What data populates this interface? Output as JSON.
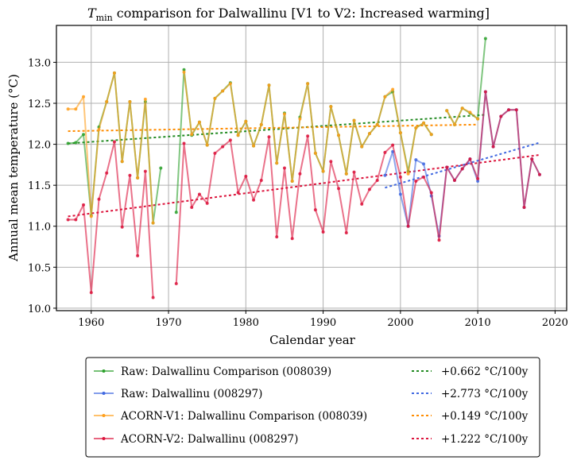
{
  "chart_data": {
    "type": "line",
    "title": {
      "prefix_italic": "T",
      "subscript": "min",
      "rest": " comparison for Dalwallinu   [V1 to V2: Increased warming]"
    },
    "xlabel": "Calendar year",
    "ylabel": "Annual mean temperature (°C)",
    "xlim": [
      1955.5,
      2021.5
    ],
    "ylim": [
      9.97,
      13.45
    ],
    "xticks": [
      1960,
      1970,
      1980,
      1990,
      2000,
      2010,
      2020
    ],
    "yticks": [
      10.0,
      10.5,
      11.0,
      11.5,
      12.0,
      12.5,
      13.0
    ],
    "ytick_labels": [
      "10.0",
      "10.5",
      "11.0",
      "11.5",
      "12.0",
      "12.5",
      "13.0"
    ],
    "grid": true,
    "legend_placement": "below-plot",
    "series": [
      {
        "name": "Raw: Dalwallinu Comparison (008039)",
        "color": "#2ca02c",
        "x": [
          1957,
          1958,
          1959,
          1960,
          1961,
          1962,
          1963,
          1964,
          1965,
          1966,
          1967,
          1968,
          1969,
          1970,
          1971,
          1972,
          1973,
          1974,
          1975,
          1976,
          1977,
          1978,
          1979,
          1980,
          1981,
          1982,
          1983,
          1984,
          1985,
          1986,
          1987,
          1988,
          1989,
          1990,
          1991,
          1992,
          1993,
          1994,
          1995,
          1996,
          1997,
          1998,
          1999,
          2000,
          2001,
          2002,
          2003,
          2004,
          2005,
          2006,
          2007,
          2008,
          2009,
          2010,
          2011
        ],
        "y": [
          12.01,
          12.02,
          12.12,
          11.13,
          12.21,
          12.52,
          12.87,
          11.79,
          12.52,
          11.59,
          12.52,
          11.04,
          11.71,
          null,
          11.17,
          12.91,
          12.11,
          12.27,
          11.99,
          12.56,
          12.65,
          12.75,
          12.11,
          12.28,
          11.98,
          12.24,
          12.72,
          11.77,
          12.38,
          11.55,
          12.33,
          12.74,
          11.89,
          11.67,
          12.46,
          12.11,
          11.64,
          12.29,
          11.97,
          12.13,
          12.24,
          12.58,
          12.64,
          12.14,
          11.67,
          12.2,
          12.26,
          12.12,
          null,
          12.41,
          12.24,
          12.44,
          12.38,
          12.31,
          13.29
        ]
      },
      {
        "name": "Raw: Dalwallinu (008297)",
        "color": "#4169e1",
        "x": [
          1998,
          1999,
          2000,
          2001,
          2002,
          2003,
          2004,
          2005,
          2006,
          2007,
          2008,
          2009,
          2010,
          2011,
          2012,
          2013,
          2014,
          2015,
          2016,
          2017,
          2018
        ],
        "y": [
          11.62,
          11.91,
          11.39,
          11.0,
          11.81,
          11.76,
          11.37,
          10.88,
          11.72,
          11.56,
          11.7,
          11.82,
          11.55,
          12.64,
          11.97,
          12.34,
          12.42,
          12.42,
          11.23,
          11.82,
          11.63
        ]
      },
      {
        "name": "ACORN-V1: Dalwallinu Comparison (008039)",
        "color": "#ff9f1c",
        "x": [
          1957,
          1958,
          1959,
          1960,
          1961,
          1962,
          1963,
          1964,
          1965,
          1966,
          1967,
          1968,
          1969,
          1970,
          1971,
          1972,
          1973,
          1974,
          1975,
          1976,
          1977,
          1978,
          1979,
          1980,
          1981,
          1982,
          1983,
          1984,
          1985,
          1986,
          1987,
          1988,
          1989,
          1990,
          1991,
          1992,
          1993,
          1994,
          1995,
          1996,
          1997,
          1998,
          1999,
          2000,
          2001,
          2002,
          2003,
          2004,
          2005,
          2006,
          2007,
          2008,
          2009,
          2010
        ],
        "y": [
          12.43,
          12.43,
          12.58,
          11.12,
          12.18,
          12.52,
          12.87,
          11.79,
          12.52,
          11.59,
          12.55,
          11.04,
          null,
          null,
          null,
          12.88,
          12.12,
          12.27,
          11.99,
          12.56,
          12.65,
          12.74,
          12.11,
          12.28,
          11.98,
          12.24,
          12.72,
          11.77,
          12.37,
          11.55,
          12.31,
          12.74,
          11.89,
          11.67,
          12.46,
          12.11,
          11.64,
          12.29,
          11.97,
          12.13,
          12.24,
          12.58,
          12.67,
          12.14,
          11.64,
          12.2,
          12.26,
          12.12,
          null,
          12.41,
          12.24,
          12.44,
          12.39,
          12.31
        ]
      },
      {
        "name": "ACORN-V2: Dalwallinu (008297)",
        "color": "#dc143c",
        "x": [
          1957,
          1958,
          1959,
          1960,
          1961,
          1962,
          1963,
          1964,
          1965,
          1966,
          1967,
          1968,
          1969,
          1970,
          1971,
          1972,
          1973,
          1974,
          1975,
          1976,
          1977,
          1978,
          1979,
          1980,
          1981,
          1982,
          1983,
          1984,
          1985,
          1986,
          1987,
          1988,
          1989,
          1990,
          1991,
          1992,
          1993,
          1994,
          1995,
          1996,
          1997,
          1998,
          1999,
          2000,
          2001,
          2002,
          2003,
          2004,
          2005,
          2006,
          2007,
          2008,
          2009,
          2010,
          2011,
          2012,
          2013,
          2014,
          2015,
          2016,
          2017,
          2018
        ],
        "y": [
          11.08,
          11.08,
          11.26,
          10.19,
          11.33,
          11.65,
          12.03,
          10.99,
          11.62,
          10.64,
          11.67,
          10.13,
          null,
          null,
          10.3,
          12.01,
          11.23,
          11.39,
          11.28,
          11.89,
          11.97,
          12.05,
          11.41,
          11.61,
          11.32,
          11.56,
          12.09,
          10.87,
          11.71,
          10.85,
          11.64,
          12.1,
          11.2,
          10.93,
          11.79,
          11.46,
          10.92,
          11.66,
          11.27,
          11.45,
          11.56,
          11.9,
          11.99,
          11.6,
          11.0,
          11.55,
          11.6,
          11.41,
          10.83,
          11.72,
          11.56,
          11.7,
          11.82,
          11.58,
          12.64,
          11.97,
          12.34,
          12.42,
          12.42,
          11.23,
          11.82,
          11.63
        ]
      }
    ],
    "trends": [
      {
        "label": "+0.662 °C/100y",
        "color": "#228b22",
        "x": [
          1957,
          2011
        ],
        "y": [
          12.01,
          12.36
        ]
      },
      {
        "label": "+2.773 °C/100y",
        "color": "#4169e1",
        "x": [
          1998,
          2018
        ],
        "y": [
          11.47,
          12.02
        ]
      },
      {
        "label": "+0.149 °C/100y",
        "color": "#ff8c00",
        "x": [
          1957,
          2010
        ],
        "y": [
          12.16,
          12.24
        ]
      },
      {
        "label": "+1.222 °C/100y",
        "color": "#dc143c",
        "x": [
          1957,
          2018
        ],
        "y": [
          11.12,
          11.87
        ]
      }
    ]
  },
  "legend": {
    "entries": [
      {
        "label": "Raw: Dalwallinu Comparison (008039)",
        "color": "#2ca02c"
      },
      {
        "label": "Raw: Dalwallinu (008297)",
        "color": "#4169e1"
      },
      {
        "label": "ACORN-V1: Dalwallinu Comparison (008039)",
        "color": "#ff9f1c"
      },
      {
        "label": "ACORN-V2: Dalwallinu (008297)",
        "color": "#dc143c"
      }
    ],
    "trend_entries": [
      {
        "label": "+0.662 °C/100y",
        "color": "#228b22"
      },
      {
        "label": "+2.773 °C/100y",
        "color": "#4169e1"
      },
      {
        "label": "+0.149 °C/100y",
        "color": "#ff8c00"
      },
      {
        "label": "+1.222 °C/100y",
        "color": "#dc143c"
      }
    ]
  }
}
